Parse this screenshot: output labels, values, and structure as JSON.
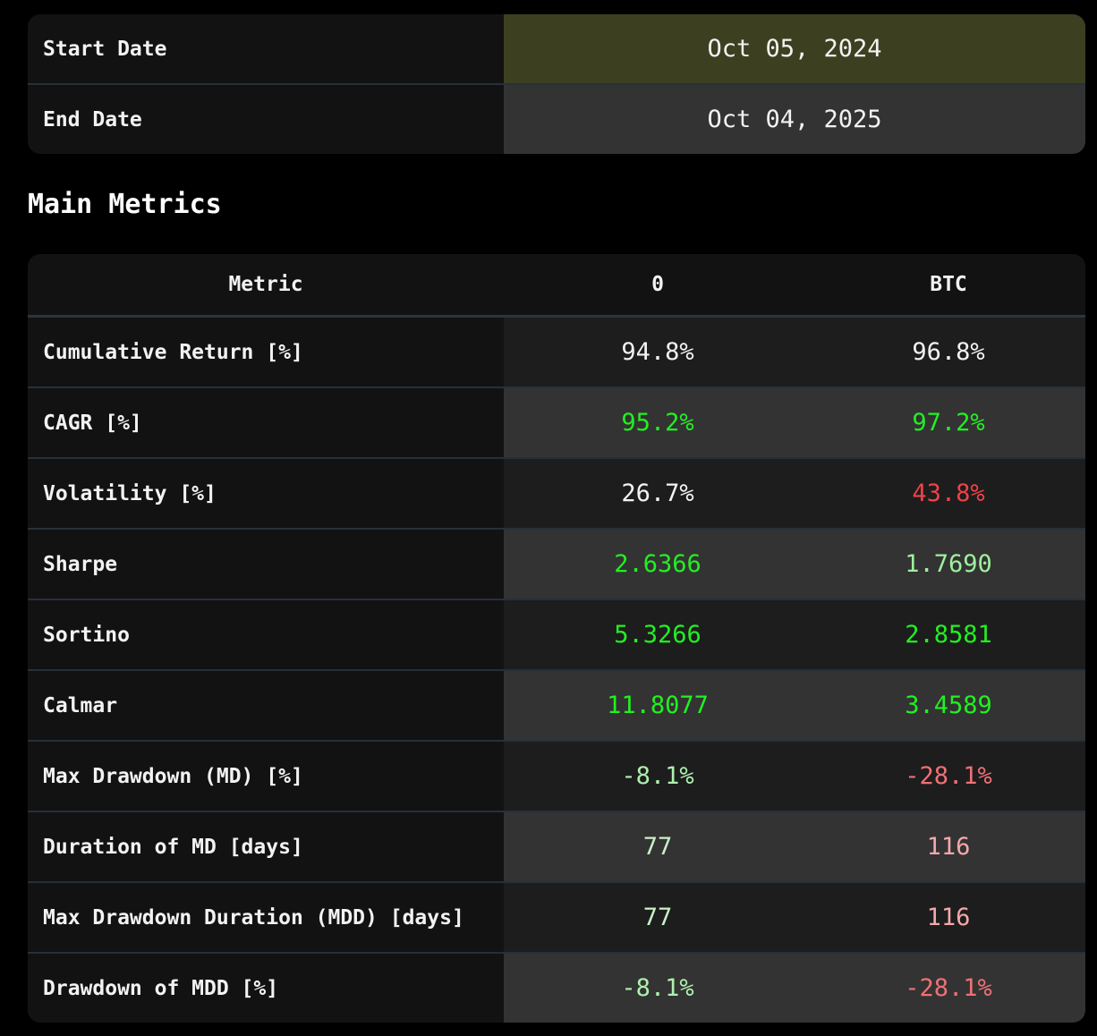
{
  "dates": [
    {
      "label": "Start Date",
      "value": "Oct 05, 2024",
      "bg": "#3d4020"
    },
    {
      "label": "End Date",
      "value": "Oct 04, 2025",
      "bg": "#333333"
    }
  ],
  "section_title": "Main Metrics",
  "metrics_table": {
    "headers": [
      "Metric",
      "0",
      "BTC"
    ],
    "rows": [
      {
        "metric": "Cumulative Return [%]",
        "a": "94.8%",
        "b": "96.8%",
        "a_color": "#f2f2f2",
        "b_color": "#f2f2f2",
        "bg": "#1d1d1d"
      },
      {
        "metric": "CAGR [%]",
        "a": "95.2%",
        "b": "97.2%",
        "a_color": "#22f022",
        "b_color": "#22f022",
        "bg": "#333333"
      },
      {
        "metric": "Volatility [%]",
        "a": "26.7%",
        "b": "43.8%",
        "a_color": "#f2f2f2",
        "b_color": "#f0414a",
        "bg": "#1d1d1d"
      },
      {
        "metric": "Sharpe",
        "a": "2.6366",
        "b": "1.7690",
        "a_color": "#22f022",
        "b_color": "#9ff09f",
        "bg": "#333333"
      },
      {
        "metric": "Sortino",
        "a": "5.3266",
        "b": "2.8581",
        "a_color": "#22f022",
        "b_color": "#22f022",
        "bg": "#1d1d1d"
      },
      {
        "metric": "Calmar",
        "a": "11.8077",
        "b": "3.4589",
        "a_color": "#22f022",
        "b_color": "#22f022",
        "bg": "#333333"
      },
      {
        "metric": "Max Drawdown (MD) [%]",
        "a": "-8.1%",
        "b": "-28.1%",
        "a_color": "#aef0ae",
        "b_color": "#f07075",
        "bg": "#1d1d1d"
      },
      {
        "metric": "Duration of MD [days]",
        "a": "77",
        "b": "116",
        "a_color": "#c8f0c8",
        "b_color": "#f4a8ab",
        "bg": "#333333"
      },
      {
        "metric": "Max Drawdown Duration (MDD) [days]",
        "a": "77",
        "b": "116",
        "a_color": "#c8f0c8",
        "b_color": "#f4a8ab",
        "bg": "#1d1d1d"
      },
      {
        "metric": "Drawdown of MDD [%]",
        "a": "-8.1%",
        "b": "-28.1%",
        "a_color": "#aef0ae",
        "b_color": "#f07075",
        "bg": "#333333"
      }
    ]
  }
}
